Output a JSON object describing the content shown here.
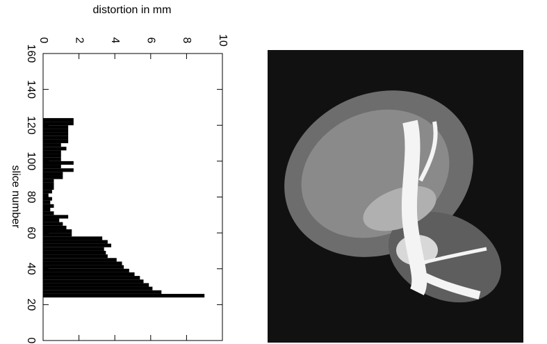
{
  "chart_data": {
    "type": "histogram",
    "orientation": "horizontal",
    "xlabel": "distortion in mm",
    "ylabel": "slice number",
    "bins": [
      24,
      26,
      28,
      30,
      32,
      34,
      36,
      38,
      40,
      42,
      44,
      46,
      48,
      50,
      52,
      54,
      56,
      58,
      60,
      62,
      64,
      66,
      68,
      70,
      72,
      74,
      76,
      78,
      80,
      82,
      84,
      86,
      88,
      90,
      92,
      94,
      96,
      98,
      100,
      102,
      104,
      106,
      108,
      110,
      112,
      114,
      116,
      118,
      120,
      122,
      124
    ],
    "values": [
      9.0,
      6.6,
      6.1,
      5.9,
      5.6,
      5.4,
      5.1,
      4.8,
      4.5,
      4.4,
      4.1,
      3.6,
      3.5,
      3.4,
      3.8,
      3.6,
      3.3,
      1.6,
      1.6,
      1.3,
      1.1,
      0.9,
      1.4,
      0.6,
      0.4,
      0.6,
      0.4,
      0.5,
      0.3,
      0.5,
      0.6,
      0.6,
      0.6,
      1.1,
      1.1,
      1.7,
      1.0,
      1.7,
      1.0,
      1.0,
      1.0,
      1.3,
      1.0,
      1.4,
      1.4,
      1.4,
      1.4,
      1.4,
      1.7,
      1.7
    ],
    "color": "#000000",
    "xlim": [
      0,
      10
    ],
    "xticks": [
      0,
      2,
      4,
      6,
      8,
      10
    ],
    "ylim": [
      0,
      160
    ],
    "yticks": [
      0,
      20,
      40,
      60,
      80,
      100,
      120,
      140,
      160
    ]
  }
}
